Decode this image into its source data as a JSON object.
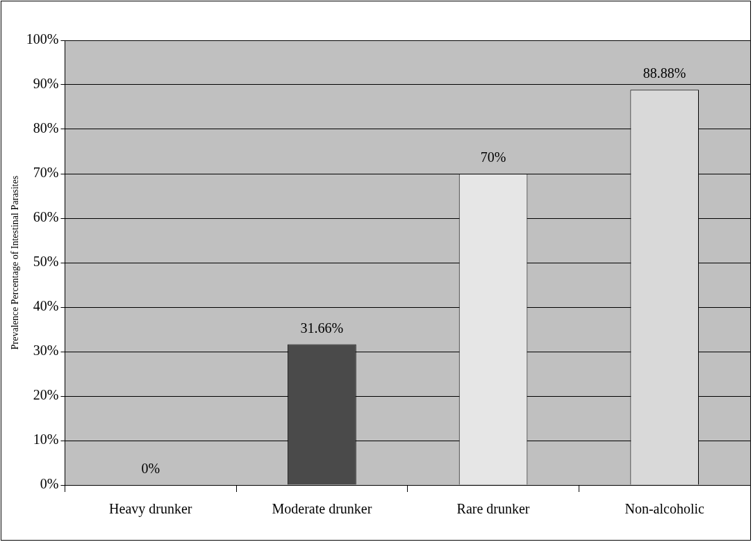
{
  "chart_data": {
    "type": "bar",
    "ylabel": "Prevalence Percentage of Intestinal Parasites",
    "categories": [
      "Heavy drunker",
      "Moderate drunker",
      "Rare drunker",
      "Non-alcoholic"
    ],
    "values": [
      0,
      31.66,
      70,
      88.88
    ],
    "colors": [
      "#808080",
      "#4a4a4a",
      "#e6e6e6",
      "#d9d9d9"
    ],
    "value_labels": [
      "0%",
      "31.66%",
      "70%",
      "88.88%"
    ],
    "ylim": [
      0,
      100
    ],
    "yticks": [
      {
        "value": 0,
        "label": "0%"
      },
      {
        "value": 10,
        "label": "10%"
      },
      {
        "value": 20,
        "label": "20%"
      },
      {
        "value": 30,
        "label": "30%"
      },
      {
        "value": 40,
        "label": "40%"
      },
      {
        "value": 50,
        "label": "50%"
      },
      {
        "value": 60,
        "label": "60%"
      },
      {
        "value": 70,
        "label": "70%"
      },
      {
        "value": 80,
        "label": "80%"
      },
      {
        "value": 90,
        "label": "90%"
      },
      {
        "value": 100,
        "label": "100%"
      }
    ],
    "grid": "y",
    "legend": false
  }
}
